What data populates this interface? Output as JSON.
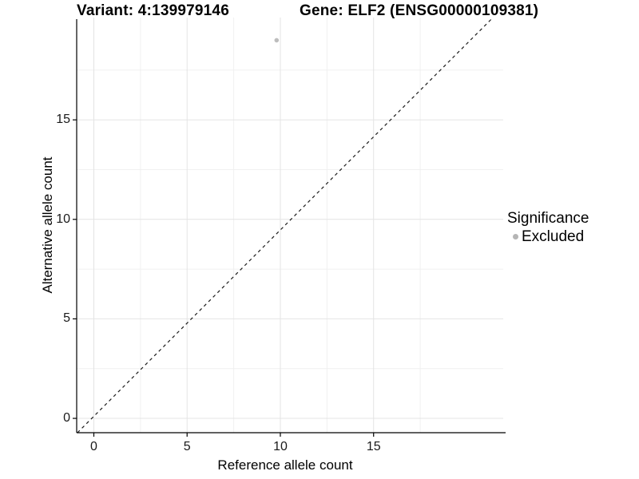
{
  "chart_data": {
    "type": "scatter",
    "title_variant": "Variant: 4:139979146",
    "title_gene": "Gene: ELF2 (ENSG00000109381)",
    "xlabel": "Reference allele count",
    "ylabel": "Alternative allele count",
    "xlim": [
      -0.92,
      21.95
    ],
    "ylim": [
      -0.72,
      20.14
    ],
    "xticks": [
      0,
      5,
      10,
      15
    ],
    "yticks": [
      0,
      5,
      10,
      15
    ],
    "xminor": [
      2.5,
      7.5,
      12.5,
      17.5
    ],
    "yminor": [
      2.5,
      7.5,
      12.5,
      17.5
    ],
    "grid": {
      "major_color": "#e4e4e4",
      "minor_color": "#f0f0f0",
      "background": "#ffffff"
    },
    "series": [
      {
        "name": "Excluded",
        "marker": "circle",
        "color": "#bdbdbd",
        "point_radius": 2.8,
        "points": [
          {
            "x": 9.8,
            "y": 19
          }
        ]
      }
    ],
    "reference_line": {
      "kind": "identity (y = x)",
      "style": "dashed",
      "color": "#1a1a1a",
      "from": {
        "x": -0.88,
        "y": -0.72
      },
      "to": {
        "x": 21.4,
        "y": 20.14
      }
    },
    "legend": {
      "title": "Significance",
      "position": "right-center",
      "items": [
        {
          "label": "Excluded",
          "marker": "circle",
          "color": "#b5b5b5"
        }
      ]
    },
    "axis": {
      "line_color": "#000000",
      "tick_color": "#000000",
      "tick_label_color": "#1a1a1a"
    }
  }
}
